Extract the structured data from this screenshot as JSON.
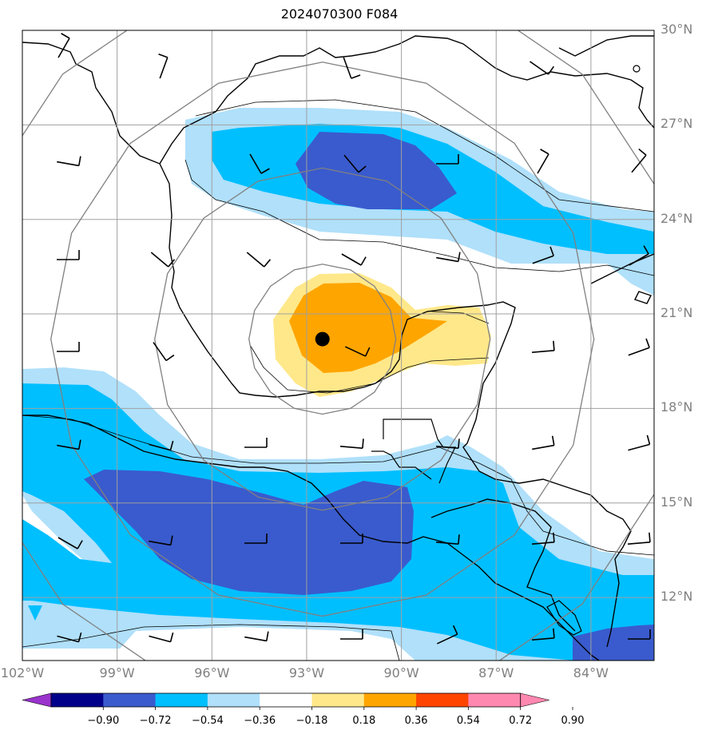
{
  "title": "2024070300 F084",
  "map": {
    "lon_range": [
      -102.0,
      -82.0
    ],
    "lat_range": [
      10.0,
      30.0
    ],
    "storm_center": {
      "lon": -92.5,
      "lat": 20.2
    },
    "lat_ticks": [
      {
        "value": 30,
        "label": "30°N"
      },
      {
        "value": 27,
        "label": "27°N"
      },
      {
        "value": 24,
        "label": "24°N"
      },
      {
        "value": 21,
        "label": "21°N"
      },
      {
        "value": 18,
        "label": "18°N"
      },
      {
        "value": 15,
        "label": "15°N"
      },
      {
        "value": 12,
        "label": "12°N"
      }
    ],
    "lon_ticks": [
      {
        "value": -102,
        "label": "102°W"
      },
      {
        "value": -99,
        "label": "99°W"
      },
      {
        "value": -96,
        "label": "96°W"
      },
      {
        "value": -93,
        "label": "93°W"
      },
      {
        "value": -90,
        "label": "90°W"
      },
      {
        "value": -87,
        "label": "87°W"
      },
      {
        "value": -84,
        "label": "84°W"
      }
    ],
    "range_ring_count": 4,
    "colors": {
      "land_outline": "#000000",
      "grid": "#a0a0a0",
      "rings": "#808080",
      "storm_marker": "#000000"
    }
  },
  "colorbar": {
    "levels": [
      "−0.90",
      "−0.72",
      "−0.54",
      "−0.36",
      "−0.18",
      "0.18",
      "0.36",
      "0.54",
      "0.72",
      "0.90"
    ],
    "colors": [
      "#9933cc",
      "#00008b",
      "#3a5bcd",
      "#00bfff",
      "#b0e0fa",
      "#ffffff",
      "#ffe88a",
      "#ffa500",
      "#ff4500",
      "#b22222",
      "#ff88b0"
    ]
  }
}
